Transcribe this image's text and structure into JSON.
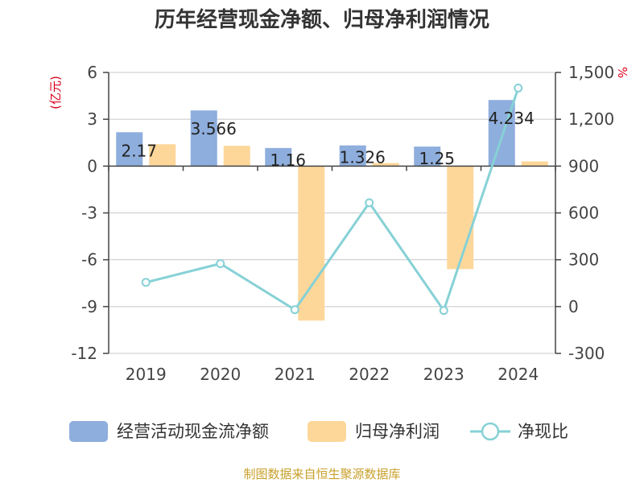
{
  "chart_data": {
    "type": "bar+line",
    "title": "历年经营现金净额、归母净利润情况",
    "categories": [
      "2019",
      "2020",
      "2021",
      "2022",
      "2023",
      "2024"
    ],
    "y_left": {
      "unit": "(亿元)",
      "min": -12,
      "max": 6,
      "ticks": [
        6,
        3,
        0,
        -3,
        -6,
        -9,
        -12
      ]
    },
    "y_right": {
      "unit": "%",
      "min": -300,
      "max": 1500,
      "ticks": [
        "1,500",
        "1,200",
        "900",
        "600",
        "300",
        "0",
        "-300"
      ],
      "tick_values": [
        1500,
        1200,
        900,
        600,
        300,
        0,
        -300
      ]
    },
    "series": [
      {
        "name": "经营活动现金流净额",
        "kind": "bar",
        "axis": "left",
        "color": "#8eaedd",
        "values": [
          2.17,
          3.566,
          1.16,
          1.326,
          1.25,
          4.234
        ],
        "labels": [
          "2.17",
          "3.566",
          "1.16",
          "1.326",
          "1.25",
          "4.234"
        ]
      },
      {
        "name": "归母净利润",
        "kind": "bar",
        "axis": "left",
        "color": "#fdd79a",
        "values": [
          1.4,
          1.3,
          -9.9,
          0.2,
          -6.6,
          0.3
        ]
      },
      {
        "name": "净现比",
        "kind": "line",
        "axis": "right",
        "color": "#86d1d6",
        "values": [
          155,
          275,
          -20,
          665,
          -25,
          1400
        ]
      }
    ],
    "legend": [
      "经营活动现金流净额",
      "归母净利润",
      "净现比"
    ],
    "grid": true
  },
  "source": "制图数据来自恒生聚源数据库"
}
